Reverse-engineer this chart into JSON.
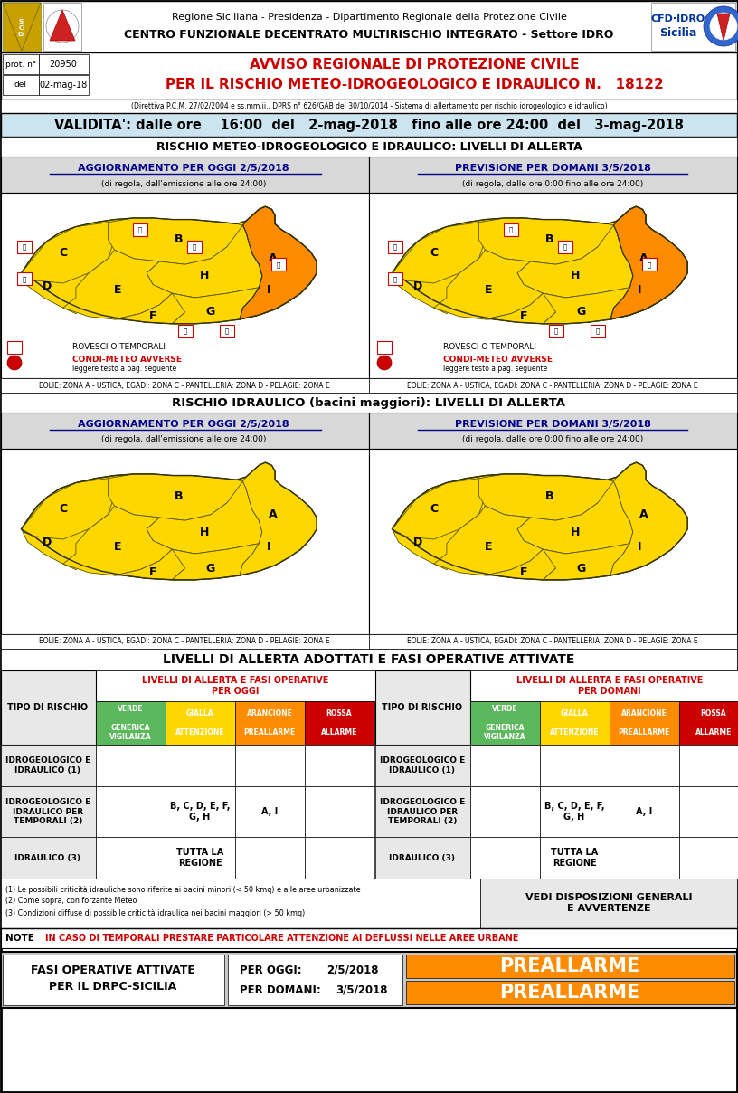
{
  "title_line1": "Regione Siciliana - Presidenza - Dipartimento Regionale della Protezione Civile",
  "title_line2": "CENTRO FUNZIONALE DECENTRATO MULTIRISCHIO INTEGRATO - Settore IDRO",
  "prot_label": "prot. n°",
  "prot_num": "20950",
  "del_label": "del",
  "del_date": "02-mag-18",
  "avviso_line1": "AVVISO REGIONALE DI PROTEZIONE CIVILE",
  "avviso_line2": "PER IL RISCHIO METEO-IDROGEOLOGICO E IDRAULICO N.",
  "avviso_num": "18122",
  "direttiva": "(Direttiva P.C.M. 27/02/2004 e ss.mm.ii., DPRS n° 626/GAB del 30/10/2014 - Sistema di allertamento per rischio idrogeologico e idraulico)",
  "validita": "VALIDITA': dalle ore    16:00  del   2-mag-2018   fino alle ore 24:00  del   3-mag-2018",
  "rischio_title1": "RISCHIO METEO-IDROGEOLOGICO E IDRAULICO: LIVELLI DI ALLERTA",
  "oggi_title": "AGGIORNAMENTO PER OGGI 2/5/2018",
  "oggi_sub": "(di regola, dall'emissione alle ore 24:00)",
  "domani_title": "PREVISIONE PER DOMANI 3/5/2018",
  "domani_sub": "(di regola, dalle ore 0:00 fino alle ore 24:00)",
  "rovesci_label": "ROVESCI O TEMPORALI",
  "condi_label": "CONDI-METEO AVVERSE",
  "leggere_label": "leggere testo a pag. seguente",
  "eolie_text": "EOLIE: ZONA A - USTICA, EGADI: ZONA C - PANTELLERIA: ZONA D - PELAGIE: ZONA E",
  "rischio_idraulico_title": "RISCHIO IDRAULICO (bacini maggiori): LIVELLI DI ALLERTA",
  "livelli_title": "LIVELLI DI ALLERTA ADOTTATI E FASI OPERATIVE ATTIVATE",
  "oggi_header": "LIVELLI DI ALLERTA E FASI OPERATIVE\nPER OGGI",
  "domani_header": "LIVELLI DI ALLERTA E FASI OPERATIVE\nPER DOMANI",
  "verde_label": "VERDE\n\nGENERICA\nVIGILANZA",
  "gialla_label": "GIALLA\n\nATTENZIONE",
  "arancione_label": "ARANCIONE\n\nPREALLARME",
  "rossa_label": "ROSSA\n\nALLARME",
  "tipo_rischio_label": "TIPO DI RISCHIO",
  "idro1_label": "IDROGEOLOGICO E\nIDRAULICO (1)",
  "idro2_label": "IDROGEOLOGICO E\nIDRAULICO PER\nTEMPORALI (2)",
  "idraulico_label": "IDRAULICO (3)",
  "idro2_gialla_oggi": "B, C, D, E, F,\nG, H",
  "idro2_arancione_oggi": "A, I",
  "idro3_gialla_oggi": "TUTTA LA\nREGIONE",
  "idro2_gialla_domani": "B, C, D, E, F,\nG, H",
  "idro2_arancione_domani": "A, I",
  "idro3_gialla_domani": "TUTTA LA\nREGIONE",
  "footnote1": "(1) Le possibili criticità idrauliche sono riferite ai bacini minori (< 50 kmq) e alle aree urbanizzate",
  "footnote2": "(2) Come sopra, con forzante Meteo",
  "footnote3": "(3) Condizioni diffuse di possibile criticità idraulica nei bacini maggiori (> 50 kmq)",
  "vedi_label": "VEDI DISPOSIZIONI GENERALI\nE AVVERTENZE",
  "note_label": "NOTE",
  "note_text": "IN CASO DI TEMPORALI PRESTARE PARTICOLARE ATTENZIONE AI DEFLUSSI NELLE AREE URBANE",
  "per_oggi_label": "PER OGGI:",
  "per_oggi_date": "2/5/2018",
  "per_domani_label": "PER DOMANI:",
  "per_domani_date": "3/5/2018",
  "preallarme_label": "PREALLARME",
  "bg_validita": "#cce4f0",
  "color_red": "#cc0000",
  "color_dark_blue": "#00008B",
  "color_orange": "#FF8C00",
  "color_yellow": "#FFD700",
  "color_green": "#5cb85c",
  "color_preallarme_bg": "#FF8C00",
  "color_gray_header": "#d8d8d8",
  "color_gray_cell": "#e8e8e8"
}
